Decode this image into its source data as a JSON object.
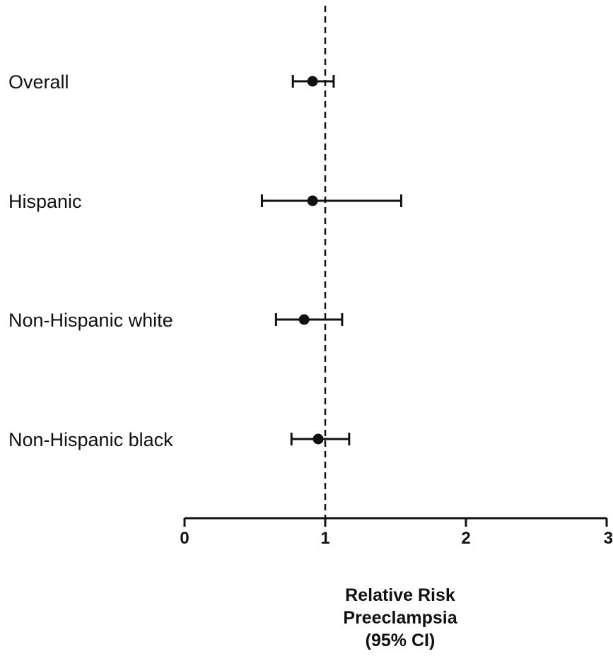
{
  "chart_data": {
    "type": "scatter",
    "categories": [
      "Overall",
      "Hispanic",
      "Non-Hispanic white",
      "Non-Hispanic black"
    ],
    "estimates": [
      0.91,
      0.91,
      0.85,
      0.95
    ],
    "ci_lower": [
      0.77,
      0.55,
      0.65,
      0.76
    ],
    "ci_upper": [
      1.06,
      1.54,
      1.12,
      1.17
    ],
    "reference_line": 1,
    "xlim": [
      0,
      3
    ],
    "xticks": [
      "0",
      "1",
      "2",
      "3"
    ],
    "xlabel": [
      "Relative Risk",
      "Preeclampsia",
      "(95% CI)"
    ],
    "colors": {
      "marks": "#111111",
      "background": "#ffffff"
    }
  }
}
